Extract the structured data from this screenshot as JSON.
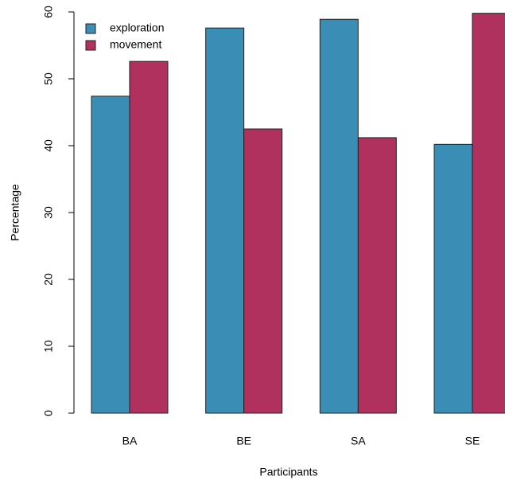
{
  "chart_data": {
    "type": "bar",
    "x_label": "Participants",
    "y_label": "Percentage",
    "categories": [
      "BA",
      "BE",
      "SA",
      "SE"
    ],
    "series": [
      {
        "name": "exploration",
        "color": "#3a8db5",
        "values": [
          47.4,
          57.6,
          58.9,
          40.2
        ]
      },
      {
        "name": "movement",
        "color": "#b0305e",
        "values": [
          52.6,
          42.5,
          41.2,
          59.8
        ]
      }
    ],
    "ylim": [
      0,
      60
    ],
    "yticks": [
      0,
      10,
      20,
      30,
      40,
      50,
      60
    ],
    "legend": "top-left"
  }
}
